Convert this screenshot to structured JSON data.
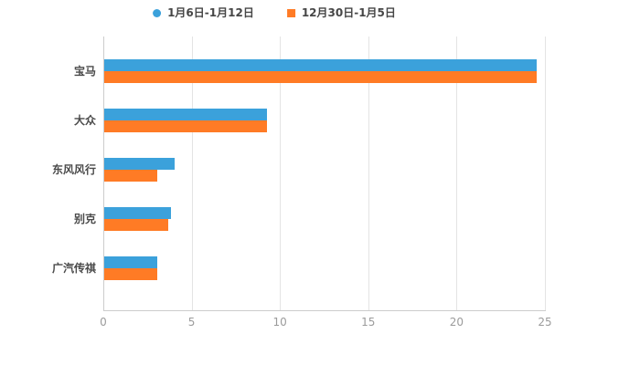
{
  "chart_data": {
    "type": "bar",
    "orientation": "horizontal",
    "title": "",
    "xlabel": "",
    "ylabel": "",
    "categories": [
      "宝马",
      "大众",
      "东风风行",
      "别克",
      "广汽传祺"
    ],
    "series": [
      {
        "name": "1月6日-1月12日",
        "color": "#3BA1DB",
        "marker": "circle",
        "values": [
          24.5,
          9.2,
          4.0,
          3.8,
          3.0
        ]
      },
      {
        "name": "12月30日-1月5日",
        "color": "#FF7B25",
        "marker": "square",
        "values": [
          24.5,
          9.2,
          3.0,
          3.6,
          3.0
        ]
      }
    ],
    "xlim": [
      0,
      25
    ],
    "x_ticks": [
      "0",
      "5",
      "10",
      "15",
      "20",
      "25"
    ],
    "grid": true,
    "legend_position": "top-center"
  },
  "legend": {
    "items": [
      {
        "label": "1月6日-1月12日",
        "color": "#3BA1DB",
        "marker": "circle"
      },
      {
        "label": "12月30日-1月5日",
        "color": "#FF7B25",
        "marker": "square"
      }
    ]
  },
  "axis_colors": {
    "grid": "#e4e4e4",
    "axis": "#cccccc",
    "tick_text": "#9b9b9b",
    "category_text": "#4a4a4a"
  }
}
